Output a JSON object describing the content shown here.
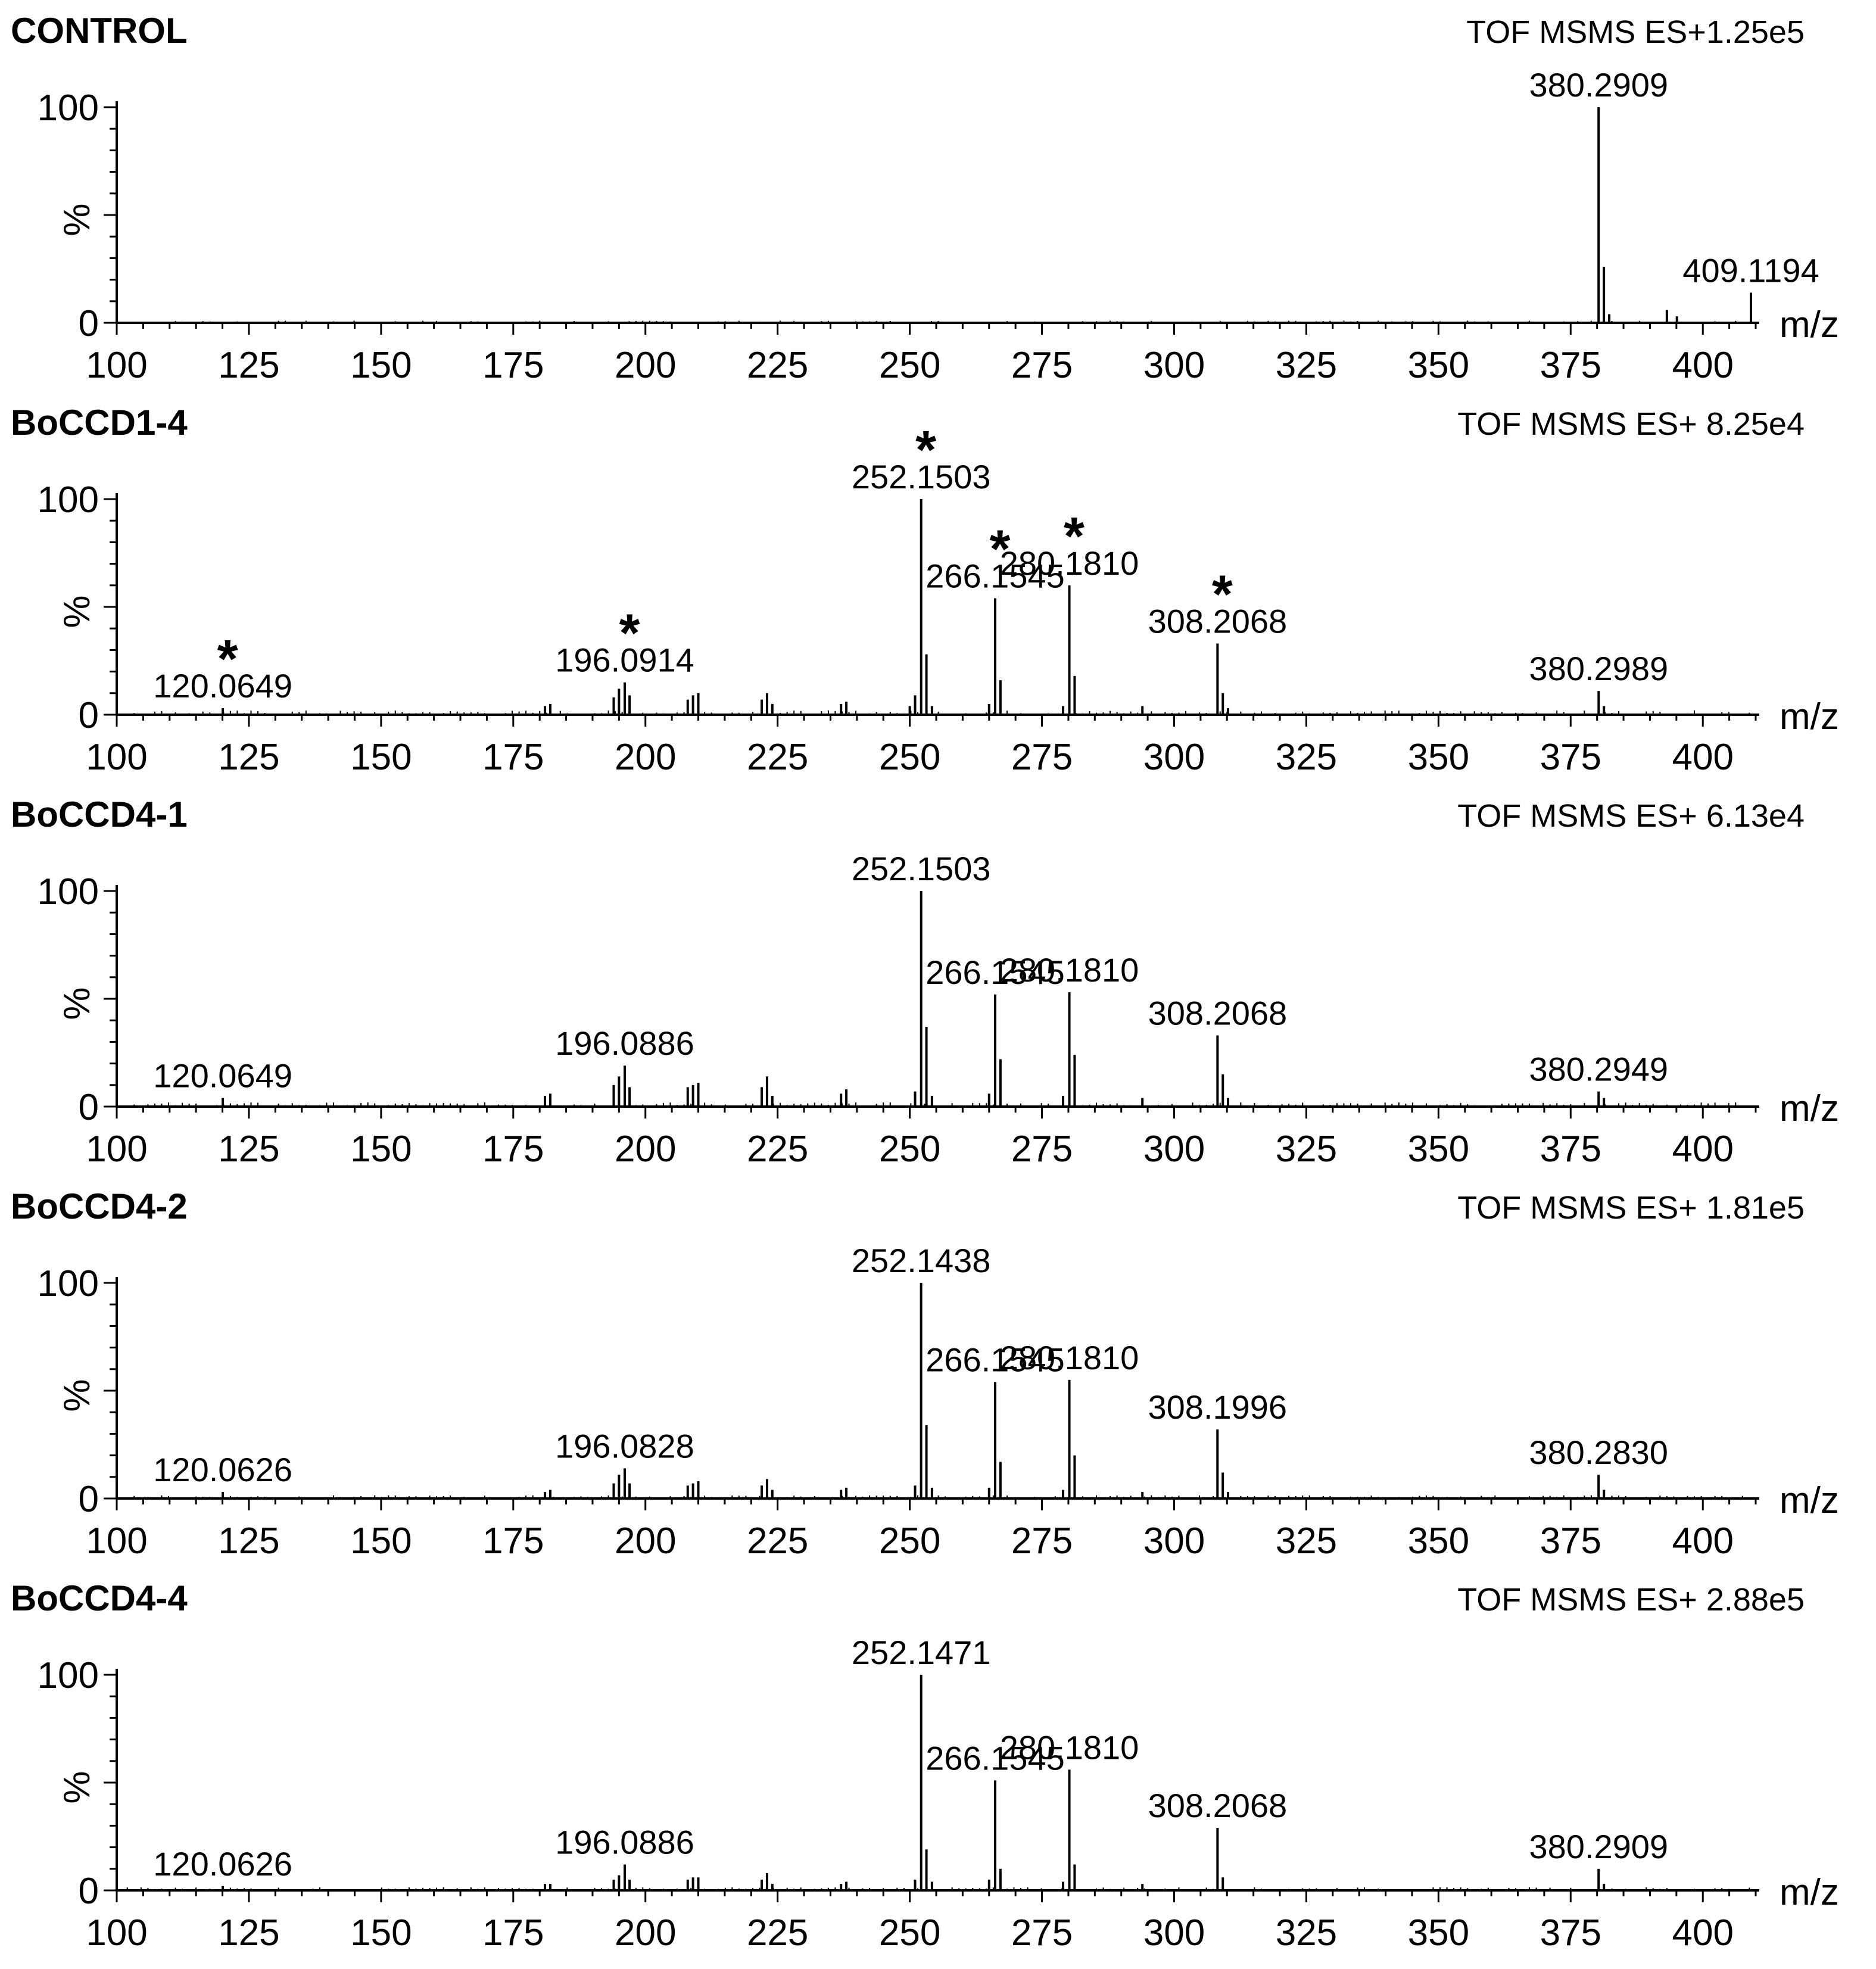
{
  "chart_data": [
    {
      "type": "bar",
      "title": "CONTROL",
      "scan_info": "TOF MSMS ES+1.25e5",
      "ylabel": "%",
      "xlabel": "m/z",
      "xlim": [
        100,
        410
      ],
      "ylim": [
        0,
        100
      ],
      "x_ticks": [
        100,
        125,
        150,
        175,
        200,
        225,
        250,
        275,
        300,
        325,
        350,
        375,
        400
      ],
      "y_ticks": [
        0,
        100
      ],
      "peaks": [
        {
          "mz": 380.29,
          "intensity": 100,
          "label": "380.2909"
        },
        {
          "mz": 381.29,
          "intensity": 26
        },
        {
          "mz": 382.3,
          "intensity": 4
        },
        {
          "mz": 393.2,
          "intensity": 6
        },
        {
          "mz": 395.1,
          "intensity": 3
        },
        {
          "mz": 409.1,
          "intensity": 14,
          "label": "409.1194"
        }
      ],
      "noise_level": 1
    },
    {
      "type": "bar",
      "title": "BoCCD1-4",
      "scan_info": "TOF MSMS ES+ 8.25e4",
      "ylabel": "%",
      "xlabel": "m/z",
      "xlim": [
        100,
        410
      ],
      "ylim": [
        0,
        100
      ],
      "x_ticks": [
        100,
        125,
        150,
        175,
        200,
        225,
        250,
        275,
        300,
        325,
        350,
        375,
        400
      ],
      "y_ticks": [
        0,
        100
      ],
      "peaks": [
        {
          "mz": 120.06,
          "intensity": 3,
          "label": "120.0649",
          "star": true
        },
        {
          "mz": 181,
          "intensity": 4
        },
        {
          "mz": 182,
          "intensity": 5
        },
        {
          "mz": 194,
          "intensity": 8
        },
        {
          "mz": 195,
          "intensity": 12
        },
        {
          "mz": 196.09,
          "intensity": 15,
          "label": "196.0914",
          "star": true
        },
        {
          "mz": 197,
          "intensity": 9
        },
        {
          "mz": 208,
          "intensity": 7
        },
        {
          "mz": 209,
          "intensity": 9
        },
        {
          "mz": 210,
          "intensity": 10
        },
        {
          "mz": 222,
          "intensity": 7
        },
        {
          "mz": 223,
          "intensity": 10
        },
        {
          "mz": 224,
          "intensity": 5
        },
        {
          "mz": 237,
          "intensity": 5
        },
        {
          "mz": 238,
          "intensity": 6
        },
        {
          "mz": 250,
          "intensity": 4
        },
        {
          "mz": 251,
          "intensity": 9
        },
        {
          "mz": 252.15,
          "intensity": 100,
          "label": "252.1503",
          "star": true
        },
        {
          "mz": 253.15,
          "intensity": 28
        },
        {
          "mz": 254.2,
          "intensity": 4
        },
        {
          "mz": 265,
          "intensity": 5
        },
        {
          "mz": 266.15,
          "intensity": 54,
          "label": "266.1545",
          "star": true
        },
        {
          "mz": 267.15,
          "intensity": 16
        },
        {
          "mz": 279,
          "intensity": 4
        },
        {
          "mz": 280.18,
          "intensity": 60,
          "label": "280.1810",
          "star": true
        },
        {
          "mz": 281.18,
          "intensity": 18
        },
        {
          "mz": 294,
          "intensity": 4
        },
        {
          "mz": 308.21,
          "intensity": 33,
          "label": "308.2068",
          "star": true
        },
        {
          "mz": 309.21,
          "intensity": 10
        },
        {
          "mz": 310.2,
          "intensity": 3
        },
        {
          "mz": 380.3,
          "intensity": 11,
          "label": "380.2989"
        },
        {
          "mz": 381.3,
          "intensity": 4
        }
      ],
      "noise_level": 2
    },
    {
      "type": "bar",
      "title": "BoCCD4-1",
      "scan_info": "TOF MSMS ES+ 6.13e4",
      "ylabel": "%",
      "xlabel": "m/z",
      "xlim": [
        100,
        410
      ],
      "ylim": [
        0,
        100
      ],
      "x_ticks": [
        100,
        125,
        150,
        175,
        200,
        225,
        250,
        275,
        300,
        325,
        350,
        375,
        400
      ],
      "y_ticks": [
        0,
        100
      ],
      "peaks": [
        {
          "mz": 120.06,
          "intensity": 4,
          "label": "120.0649"
        },
        {
          "mz": 181,
          "intensity": 5
        },
        {
          "mz": 182,
          "intensity": 6
        },
        {
          "mz": 194,
          "intensity": 10
        },
        {
          "mz": 195,
          "intensity": 14
        },
        {
          "mz": 196.09,
          "intensity": 19,
          "label": "196.0886"
        },
        {
          "mz": 197,
          "intensity": 9
        },
        {
          "mz": 208,
          "intensity": 9
        },
        {
          "mz": 209,
          "intensity": 10
        },
        {
          "mz": 210,
          "intensity": 11
        },
        {
          "mz": 222,
          "intensity": 9
        },
        {
          "mz": 223,
          "intensity": 14
        },
        {
          "mz": 224,
          "intensity": 5
        },
        {
          "mz": 237,
          "intensity": 6
        },
        {
          "mz": 238,
          "intensity": 8
        },
        {
          "mz": 251,
          "intensity": 7
        },
        {
          "mz": 252.15,
          "intensity": 100,
          "label": "252.1503"
        },
        {
          "mz": 253.15,
          "intensity": 37
        },
        {
          "mz": 254.2,
          "intensity": 5
        },
        {
          "mz": 265,
          "intensity": 6
        },
        {
          "mz": 266.15,
          "intensity": 52,
          "label": "266.1545"
        },
        {
          "mz": 267.15,
          "intensity": 22
        },
        {
          "mz": 279,
          "intensity": 5
        },
        {
          "mz": 280.18,
          "intensity": 53,
          "label": "280.1810"
        },
        {
          "mz": 281.18,
          "intensity": 24
        },
        {
          "mz": 294,
          "intensity": 4
        },
        {
          "mz": 308.21,
          "intensity": 33,
          "label": "308.2068"
        },
        {
          "mz": 309.21,
          "intensity": 15
        },
        {
          "mz": 310.2,
          "intensity": 4
        },
        {
          "mz": 380.29,
          "intensity": 7,
          "label": "380.2949"
        },
        {
          "mz": 381.3,
          "intensity": 4
        }
      ],
      "noise_level": 2
    },
    {
      "type": "bar",
      "title": "BoCCD4-2",
      "scan_info": "TOF MSMS ES+ 1.81e5",
      "ylabel": "%",
      "xlabel": "m/z",
      "xlim": [
        100,
        410
      ],
      "ylim": [
        0,
        100
      ],
      "x_ticks": [
        100,
        125,
        150,
        175,
        200,
        225,
        250,
        275,
        300,
        325,
        350,
        375,
        400
      ],
      "y_ticks": [
        0,
        100
      ],
      "peaks": [
        {
          "mz": 120.06,
          "intensity": 3,
          "label": "120.0626"
        },
        {
          "mz": 181,
          "intensity": 3
        },
        {
          "mz": 182,
          "intensity": 4
        },
        {
          "mz": 194,
          "intensity": 7
        },
        {
          "mz": 195,
          "intensity": 11
        },
        {
          "mz": 196.08,
          "intensity": 14,
          "label": "196.0828"
        },
        {
          "mz": 197,
          "intensity": 7
        },
        {
          "mz": 208,
          "intensity": 6
        },
        {
          "mz": 209,
          "intensity": 7
        },
        {
          "mz": 210,
          "intensity": 8
        },
        {
          "mz": 222,
          "intensity": 6
        },
        {
          "mz": 223,
          "intensity": 9
        },
        {
          "mz": 224,
          "intensity": 4
        },
        {
          "mz": 237,
          "intensity": 4
        },
        {
          "mz": 238,
          "intensity": 5
        },
        {
          "mz": 251,
          "intensity": 6
        },
        {
          "mz": 252.14,
          "intensity": 100,
          "label": "252.1438"
        },
        {
          "mz": 253.15,
          "intensity": 34
        },
        {
          "mz": 254.2,
          "intensity": 5
        },
        {
          "mz": 265,
          "intensity": 5
        },
        {
          "mz": 266.15,
          "intensity": 54,
          "label": "266.1545"
        },
        {
          "mz": 267.15,
          "intensity": 17
        },
        {
          "mz": 279,
          "intensity": 4
        },
        {
          "mz": 280.18,
          "intensity": 55,
          "label": "280.1810"
        },
        {
          "mz": 281.18,
          "intensity": 20
        },
        {
          "mz": 294,
          "intensity": 3
        },
        {
          "mz": 308.2,
          "intensity": 32,
          "label": "308.1996"
        },
        {
          "mz": 309.2,
          "intensity": 12
        },
        {
          "mz": 310.2,
          "intensity": 3
        },
        {
          "mz": 380.28,
          "intensity": 11,
          "label": "380.2830"
        },
        {
          "mz": 381.3,
          "intensity": 4
        }
      ],
      "noise_level": 1.5
    },
    {
      "type": "bar",
      "title": "BoCCD4-4",
      "scan_info": "TOF MSMS ES+ 2.88e5",
      "ylabel": "%",
      "xlabel": "m/z",
      "xlim": [
        100,
        410
      ],
      "ylim": [
        0,
        100
      ],
      "x_ticks": [
        100,
        125,
        150,
        175,
        200,
        225,
        250,
        275,
        300,
        325,
        350,
        375,
        400
      ],
      "y_ticks": [
        0,
        100
      ],
      "peaks": [
        {
          "mz": 120.06,
          "intensity": 2,
          "label": "120.0626"
        },
        {
          "mz": 181,
          "intensity": 3
        },
        {
          "mz": 182,
          "intensity": 3
        },
        {
          "mz": 194,
          "intensity": 5
        },
        {
          "mz": 195,
          "intensity": 7
        },
        {
          "mz": 196.09,
          "intensity": 12,
          "label": "196.0886"
        },
        {
          "mz": 197,
          "intensity": 5
        },
        {
          "mz": 208,
          "intensity": 5
        },
        {
          "mz": 209,
          "intensity": 6
        },
        {
          "mz": 210,
          "intensity": 6
        },
        {
          "mz": 222,
          "intensity": 5
        },
        {
          "mz": 223,
          "intensity": 8
        },
        {
          "mz": 224,
          "intensity": 3
        },
        {
          "mz": 237,
          "intensity": 3
        },
        {
          "mz": 238,
          "intensity": 4
        },
        {
          "mz": 251,
          "intensity": 5
        },
        {
          "mz": 252.15,
          "intensity": 100,
          "label": "252.1471"
        },
        {
          "mz": 253.15,
          "intensity": 19
        },
        {
          "mz": 254.2,
          "intensity": 4
        },
        {
          "mz": 265,
          "intensity": 5
        },
        {
          "mz": 266.15,
          "intensity": 51,
          "label": "266.1545"
        },
        {
          "mz": 267.15,
          "intensity": 10
        },
        {
          "mz": 279,
          "intensity": 4
        },
        {
          "mz": 280.18,
          "intensity": 56,
          "label": "280.1810"
        },
        {
          "mz": 281.18,
          "intensity": 12
        },
        {
          "mz": 294,
          "intensity": 3
        },
        {
          "mz": 308.21,
          "intensity": 29,
          "label": "308.2068"
        },
        {
          "mz": 309.21,
          "intensity": 6
        },
        {
          "mz": 380.29,
          "intensity": 10,
          "label": "380.2909"
        },
        {
          "mz": 381.3,
          "intensity": 3
        }
      ],
      "noise_level": 1.5
    }
  ]
}
